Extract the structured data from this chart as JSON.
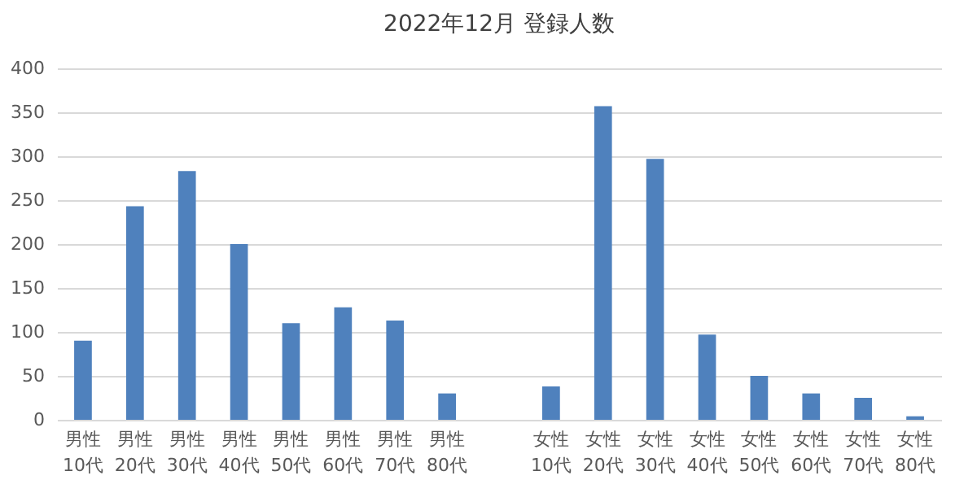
{
  "chart_data": {
    "type": "bar",
    "title": "2022年12月  登録人数",
    "categories": [
      "男性\n10代",
      "男性\n20代",
      "男性\n30代",
      "男性\n40代",
      "男性\n50代",
      "男性\n60代",
      "男性\n70代",
      "男性\n80代",
      null,
      "女性\n10代",
      "女性\n20代",
      "女性\n30代",
      "女性\n40代",
      "女性\n50代",
      "女性\n60代",
      "女性\n70代",
      "女性\n80代"
    ],
    "values": [
      90,
      243,
      283,
      200,
      110,
      128,
      113,
      30,
      null,
      38,
      357,
      297,
      97,
      50,
      30,
      25,
      4
    ],
    "color": "#4f81bd",
    "ylim": [
      0,
      400
    ],
    "yticks": [
      0,
      50,
      100,
      150,
      200,
      250,
      300,
      350,
      400
    ],
    "grid": "y"
  }
}
